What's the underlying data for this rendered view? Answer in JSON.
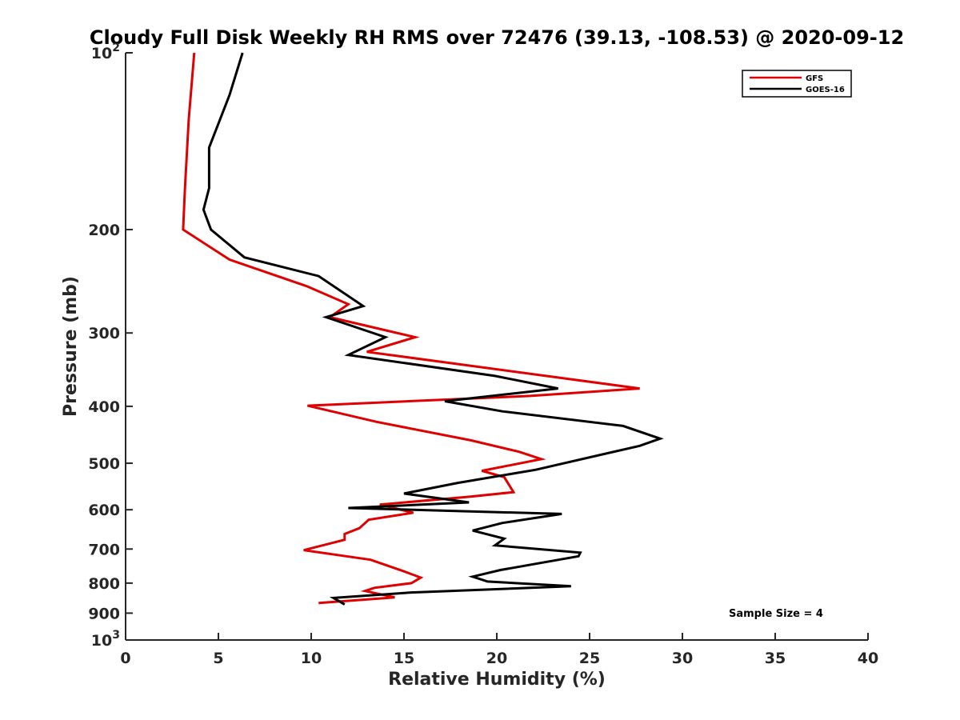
{
  "chart_data": {
    "type": "line",
    "title": "Cloudy Full Disk Weekly RH RMS over 72476 (39.13, -108.53) @ 2020-09-12",
    "xlabel": "Relative Humidity (%)",
    "ylabel": "Pressure (mb)",
    "xlim": [
      0,
      40
    ],
    "ylim": [
      100,
      1000
    ],
    "yscale": "log",
    "y_reversed": true,
    "x_ticks": [
      {
        "value": 0,
        "label": "0"
      },
      {
        "value": 5,
        "label": "5"
      },
      {
        "value": 10,
        "label": "10"
      },
      {
        "value": 15,
        "label": "15"
      },
      {
        "value": 20,
        "label": "20"
      },
      {
        "value": 25,
        "label": "25"
      },
      {
        "value": 30,
        "label": "30"
      },
      {
        "value": 35,
        "label": "35"
      },
      {
        "value": 40,
        "label": "40"
      }
    ],
    "y_ticks": [
      {
        "value": 100,
        "base": "10",
        "exp": "2"
      },
      {
        "value": 200,
        "label": "200"
      },
      {
        "value": 300,
        "label": "300"
      },
      {
        "value": 400,
        "label": "400"
      },
      {
        "value": 500,
        "label": "500"
      },
      {
        "value": 600,
        "label": "600"
      },
      {
        "value": 700,
        "label": "700"
      },
      {
        "value": 800,
        "label": "800"
      },
      {
        "value": 900,
        "label": "900"
      },
      {
        "value": 1000,
        "base": "10",
        "exp": "3"
      }
    ],
    "grid": false,
    "legend_position": "top-right",
    "annotation": "Sample Size = 4",
    "series": [
      {
        "name": "GFS",
        "color": "#e00000",
        "points": [
          [
            3.7,
            100
          ],
          [
            3.4,
            130
          ],
          [
            3.2,
            170
          ],
          [
            3.1,
            200
          ],
          [
            5.6,
            225
          ],
          [
            9.8,
            250
          ],
          [
            12.0,
            268
          ],
          [
            11.0,
            282
          ],
          [
            15.6,
            305
          ],
          [
            13.0,
            323
          ],
          [
            27.7,
            373
          ],
          [
            21.8,
            384
          ],
          [
            9.8,
            399
          ],
          [
            13.5,
            425
          ],
          [
            18.6,
            457
          ],
          [
            21.2,
            478
          ],
          [
            22.4,
            492
          ],
          [
            19.2,
            515
          ],
          [
            20.4,
            528
          ],
          [
            20.9,
            560
          ],
          [
            18.6,
            570
          ],
          [
            13.7,
            588
          ],
          [
            15.5,
            607
          ],
          [
            13.1,
            624
          ],
          [
            12.6,
            645
          ],
          [
            11.8,
            660
          ],
          [
            11.8,
            675
          ],
          [
            9.6,
            703
          ],
          [
            13.2,
            730
          ],
          [
            15.0,
            764
          ],
          [
            15.9,
            783
          ],
          [
            15.4,
            800
          ],
          [
            13.4,
            815
          ],
          [
            12.9,
            825
          ],
          [
            14.5,
            846
          ],
          [
            10.4,
            865
          ]
        ]
      },
      {
        "name": "GOES-16",
        "color": "#000000",
        "points": [
          [
            6.3,
            100
          ],
          [
            5.6,
            118
          ],
          [
            4.5,
            145
          ],
          [
            4.5,
            170
          ],
          [
            4.2,
            185
          ],
          [
            4.6,
            200
          ],
          [
            6.4,
            223
          ],
          [
            10.4,
            240
          ],
          [
            12.8,
            270
          ],
          [
            10.8,
            282
          ],
          [
            14.0,
            305
          ],
          [
            12.0,
            327
          ],
          [
            19.9,
            355
          ],
          [
            23.3,
            373
          ],
          [
            17.2,
            392
          ],
          [
            20.3,
            408
          ],
          [
            26.8,
            432
          ],
          [
            28.8,
            454
          ],
          [
            27.7,
            467
          ],
          [
            22.1,
            513
          ],
          [
            17.9,
            540
          ],
          [
            15.0,
            563
          ],
          [
            18.5,
            583
          ],
          [
            12.0,
            596
          ],
          [
            23.5,
            610
          ],
          [
            20.3,
            632
          ],
          [
            18.7,
            651
          ],
          [
            20.4,
            672
          ],
          [
            19.9,
            690
          ],
          [
            24.5,
            710
          ],
          [
            24.4,
            720
          ],
          [
            20.2,
            760
          ],
          [
            18.7,
            780
          ],
          [
            19.5,
            795
          ],
          [
            24.0,
            810
          ],
          [
            15.4,
            830
          ],
          [
            11.2,
            848
          ],
          [
            11.8,
            870
          ]
        ]
      }
    ]
  }
}
